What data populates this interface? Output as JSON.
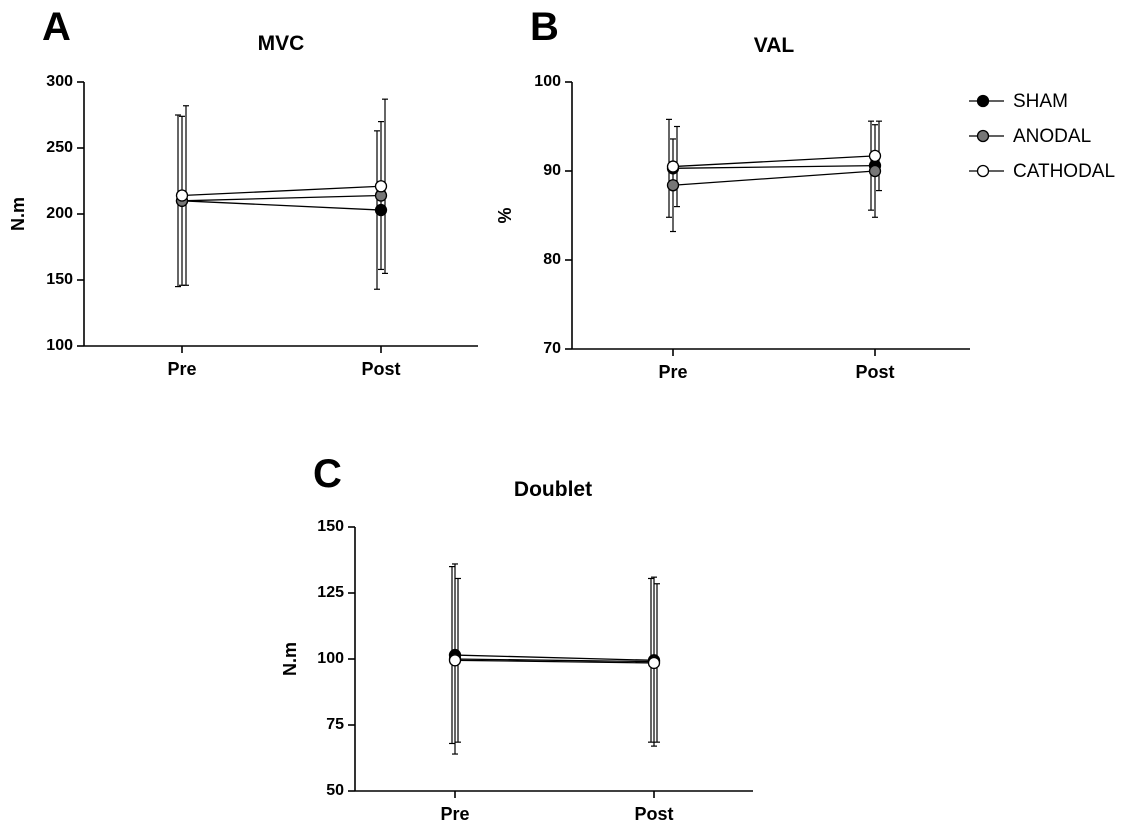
{
  "legend": {
    "placement": "right of panel B",
    "items": [
      {
        "label": "SHAM",
        "color": "#000000"
      },
      {
        "label": "ANODAL",
        "color": "#777777"
      },
      {
        "label": "CATHODAL",
        "color": "#ffffff"
      }
    ]
  },
  "chart_data": [
    {
      "panel": "A",
      "type": "line",
      "title": "MVC",
      "xlabel": "",
      "ylabel": "N.m",
      "categories": [
        "Pre",
        "Post"
      ],
      "ylim": [
        100,
        300
      ],
      "yticks": [
        100,
        150,
        200,
        250,
        300
      ],
      "grid": false,
      "series": [
        {
          "name": "SHAM",
          "values": [
            210,
            203
          ],
          "error": [
            65,
            60
          ]
        },
        {
          "name": "ANODAL",
          "values": [
            210,
            214
          ],
          "error": [
            64,
            56
          ]
        },
        {
          "name": "CATHODAL",
          "values": [
            214,
            221
          ],
          "error": [
            68,
            66
          ]
        }
      ]
    },
    {
      "panel": "B",
      "type": "line",
      "title": "VAL",
      "xlabel": "",
      "ylabel": "%",
      "categories": [
        "Pre",
        "Post"
      ],
      "ylim": [
        70,
        100
      ],
      "yticks": [
        70,
        80,
        90,
        100
      ],
      "grid": false,
      "series": [
        {
          "name": "SHAM",
          "values": [
            90.3,
            90.6
          ],
          "error": [
            5.5,
            5.0
          ]
        },
        {
          "name": "ANODAL",
          "values": [
            88.4,
            90.0
          ],
          "error": [
            5.2,
            5.2
          ]
        },
        {
          "name": "CATHODAL",
          "values": [
            90.5,
            91.7
          ],
          "error": [
            4.5,
            3.9
          ]
        }
      ]
    },
    {
      "panel": "C",
      "type": "line",
      "title": "Doublet",
      "xlabel": "",
      "ylabel": "N.m",
      "categories": [
        "Pre",
        "Post"
      ],
      "ylim": [
        50,
        150
      ],
      "yticks": [
        50,
        75,
        100,
        125,
        150
      ],
      "grid": false,
      "series": [
        {
          "name": "SHAM",
          "values": [
            101.5,
            99.5
          ],
          "error": [
            33.5,
            31
          ]
        },
        {
          "name": "ANODAL",
          "values": [
            100,
            99
          ],
          "error": [
            36,
            32
          ]
        },
        {
          "name": "CATHODAL",
          "values": [
            99.5,
            98.5
          ],
          "error": [
            31,
            30
          ]
        }
      ]
    }
  ]
}
